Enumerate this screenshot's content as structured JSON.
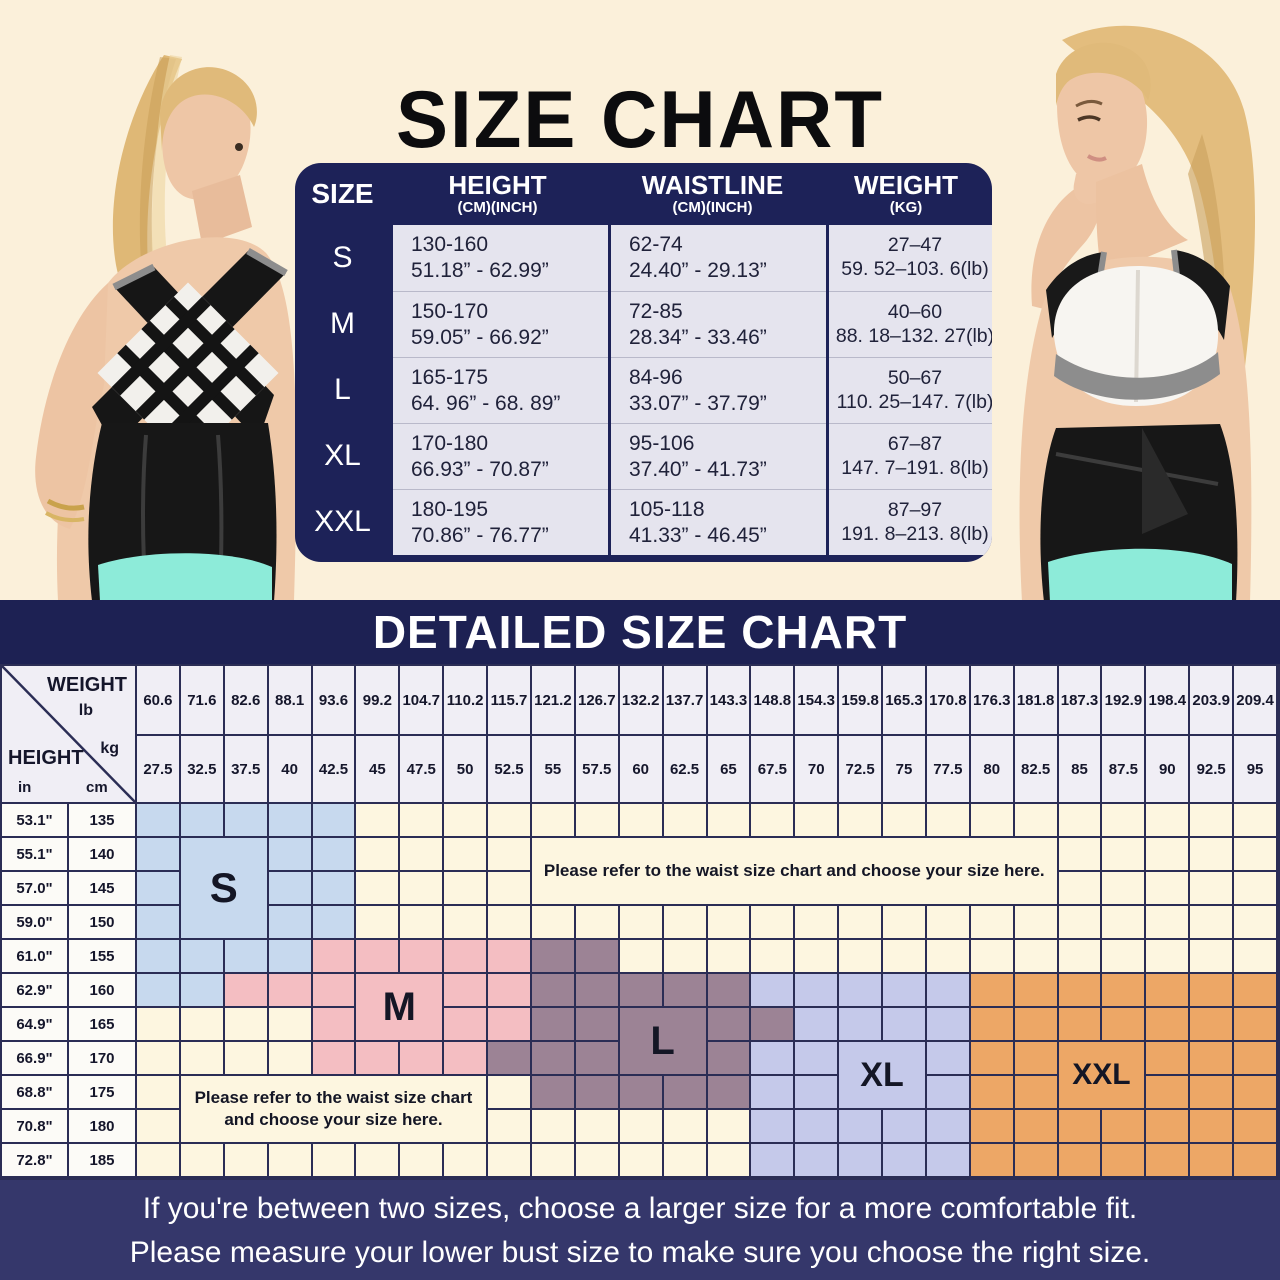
{
  "title": "SIZE CHART",
  "size_table": {
    "col_headers": [
      {
        "label": "SIZE",
        "sub": ""
      },
      {
        "label": "HEIGHT",
        "sub": "(CM)(INCH)"
      },
      {
        "label": "WAISTLINE",
        "sub": "(CM)(INCH)"
      },
      {
        "label": "WEIGHT",
        "sub": "(KG)"
      }
    ],
    "rows": [
      {
        "size": "S",
        "height": [
          "130-160",
          "51.18” - 62.99”"
        ],
        "waist": [
          "62-74",
          "24.40” - 29.13”"
        ],
        "weight": [
          "27–47",
          "59. 52–103. 6(lb)"
        ]
      },
      {
        "size": "M",
        "height": [
          "150-170",
          "59.05” - 66.92”"
        ],
        "waist": [
          "72-85",
          "28.34” - 33.46”"
        ],
        "weight": [
          "40–60",
          "88. 18–132. 27(lb)"
        ]
      },
      {
        "size": "L",
        "height": [
          "165-175",
          "64. 96” - 68. 89”"
        ],
        "waist": [
          "84-96",
          "33.07” - 37.79”"
        ],
        "weight": [
          "50–67",
          "110. 25–147. 7(lb)"
        ]
      },
      {
        "size": "XL",
        "height": [
          "170-180",
          "66.93” - 70.87”"
        ],
        "waist": [
          "95-106",
          "37.40” - 41.73”"
        ],
        "weight": [
          "67–87",
          "147. 7–191. 8(lb)"
        ]
      },
      {
        "size": "XXL",
        "height": [
          "180-195",
          "70.86” - 76.77”"
        ],
        "waist": [
          "105-118",
          "41.33” - 46.45”"
        ],
        "weight": [
          "87–97",
          "191. 8–213. 8(lb)"
        ]
      }
    ]
  },
  "detailed": {
    "title": "DETAILED SIZE CHART",
    "corner": {
      "weight": "WEIGHT",
      "lb": "lb",
      "kg": "kg",
      "height": "HEIGHT",
      "in": "in",
      "cm": "cm"
    },
    "weights_lb": [
      "60.6",
      "71.6",
      "82.6",
      "88.1",
      "93.6",
      "99.2",
      "104.7",
      "110.2",
      "115.7",
      "121.2",
      "126.7",
      "132.2",
      "137.7",
      "143.3",
      "148.8",
      "154.3",
      "159.8",
      "165.3",
      "170.8",
      "176.3",
      "181.8",
      "187.3",
      "192.9",
      "198.4",
      "203.9",
      "209.4"
    ],
    "weights_kg": [
      "27.5",
      "32.5",
      "37.5",
      "40",
      "42.5",
      "45",
      "47.5",
      "50",
      "52.5",
      "55",
      "57.5",
      "60",
      "62.5",
      "65",
      "67.5",
      "70",
      "72.5",
      "75",
      "77.5",
      "80",
      "82.5",
      "85",
      "87.5",
      "90",
      "92.5",
      "95"
    ],
    "rows": [
      {
        "in": "53.1\"",
        "cm": "135"
      },
      {
        "in": "55.1\"",
        "cm": "140"
      },
      {
        "in": "57.0\"",
        "cm": "145"
      },
      {
        "in": "59.0\"",
        "cm": "150"
      },
      {
        "in": "61.0\"",
        "cm": "155"
      },
      {
        "in": "62.9\"",
        "cm": "160"
      },
      {
        "in": "64.9\"",
        "cm": "165"
      },
      {
        "in": "66.9\"",
        "cm": "170"
      },
      {
        "in": "68.8\"",
        "cm": "175"
      },
      {
        "in": "70.8\"",
        "cm": "180"
      },
      {
        "in": "72.8\"",
        "cm": "185"
      }
    ],
    "cell_colors": [
      "BBBBB.....................",
      "BBBBB.....................",
      "BBBBB.....................",
      "BBBBB.....................",
      "BBBBPPPPPLL...............",
      "BBPPPPPPPLLLLLXXXXXOOOOOOO",
      "....PPPPPLLLLLLXXXXOOOOOOO",
      "....PPPPLLLLLLXXXXXOOOOOOO",
      ".........LLLLLXXXXXOOOOOOO",
      "..............XXXXXOOOOOOO",
      "..............XXXXXOOOOOOO"
    ],
    "labels": [
      {
        "text": "S",
        "row": 2,
        "col": 2,
        "rowspan": 3,
        "colspan": 2,
        "key": "B",
        "font": 42
      },
      {
        "text": "M",
        "row": 6,
        "col": 6,
        "rowspan": 2,
        "colspan": 2,
        "key": "P",
        "font": 40
      },
      {
        "text": "L",
        "row": 7,
        "col": 12,
        "rowspan": 2,
        "colspan": 2,
        "key": "L",
        "font": 40
      },
      {
        "text": "XL",
        "row": 8,
        "col": 17,
        "rowspan": 2,
        "colspan": 2,
        "key": "X",
        "font": 34
      },
      {
        "text": "XXL",
        "row": 8,
        "col": 22,
        "rowspan": 2,
        "colspan": 2,
        "key": "O",
        "font": 30
      }
    ],
    "notes": [
      {
        "text": "Please refer to the waist size chart and choose your size here.",
        "row": 2,
        "col": 10,
        "rowspan": 2,
        "colspan": 12
      },
      {
        "text": "Please refer to the waist size chart and choose your size here.",
        "row": 9,
        "col": 2,
        "rowspan": 2,
        "colspan": 7
      }
    ]
  },
  "footer": {
    "line1": "If you're between two sizes, choose a larger size for a more comfortable fit.",
    "line2": "Please measure your lower bust size to make sure you choose the right size."
  },
  "colors": {
    "B": "#c7d9ee",
    "P": "#f4bec2",
    "L": "#9c8395",
    "X": "#c5c9ea",
    "O": "#eda766",
    ".": "#fdf6e0",
    "navy": "#1d2258",
    "banner_navy": "#1d2153",
    "grid_line": "#2b2d55",
    "footer_navy": "#35376b",
    "cream": "#fbf0da",
    "table_cell": "#e5e4ee",
    "mint": "#8debd9",
    "hair_blonde": "#dfb876",
    "skin": "#efc9a9"
  },
  "chart_data": [
    {
      "type": "table",
      "title": "SIZE CHART",
      "columns": [
        "SIZE",
        "HEIGHT (CM)(INCH)",
        "WAISTLINE (CM)(INCH)",
        "WEIGHT (KG)"
      ],
      "rows": [
        [
          "S",
          "130-160 cm / 51.18”-62.99”",
          "62-74 cm / 24.40”-29.13”",
          "27–47 kg / 59.52–103.6 lb"
        ],
        [
          "M",
          "150-170 cm / 59.05”-66.92”",
          "72-85 cm / 28.34”-33.46”",
          "40–60 kg / 88.18–132.27 lb"
        ],
        [
          "L",
          "165-175 cm / 64.96”-68.89”",
          "84-96 cm / 33.07”-37.79”",
          "50–67 kg / 110.25–147.7 lb"
        ],
        [
          "XL",
          "170-180 cm / 66.93”-70.87”",
          "95-106 cm / 37.40”-41.73”",
          "67–87 kg / 147.7–191.8 lb"
        ],
        [
          "XXL",
          "180-195 cm / 70.86”-76.77”",
          "105-118 cm / 41.33”-46.45”",
          "87–97 kg / 191.8–213.8 lb"
        ]
      ]
    },
    {
      "type": "heatmap",
      "title": "DETAILED SIZE CHART",
      "xlabel": "WEIGHT (lb / kg)",
      "ylabel": "HEIGHT (in / cm)",
      "x_lb": [
        60.6,
        71.6,
        82.6,
        88.1,
        93.6,
        99.2,
        104.7,
        110.2,
        115.7,
        121.2,
        126.7,
        132.2,
        137.7,
        143.3,
        148.8,
        154.3,
        159.8,
        165.3,
        170.8,
        176.3,
        181.8,
        187.3,
        192.9,
        198.4,
        203.9,
        209.4
      ],
      "x_kg": [
        27.5,
        32.5,
        37.5,
        40,
        42.5,
        45,
        47.5,
        50,
        52.5,
        55,
        57.5,
        60,
        62.5,
        65,
        67.5,
        70,
        72.5,
        75,
        77.5,
        80,
        82.5,
        85,
        87.5,
        90,
        92.5,
        95
      ],
      "y_in": [
        53.1,
        55.1,
        57.0,
        59.0,
        61.0,
        62.9,
        64.9,
        66.9,
        68.8,
        70.8,
        72.8
      ],
      "y_cm": [
        135,
        140,
        145,
        150,
        155,
        160,
        165,
        170,
        175,
        180,
        185
      ],
      "cells": [
        "BBBBB.....................",
        "BBBBB.....................",
        "BBBBB.....................",
        "BBBBB.....................",
        "BBBBPPPPPLL...............",
        "BBPPPPPPPLLLLLXXXXXOOOOOOO",
        "....PPPPPLLLLLLXXXXOOOOOOO",
        "....PPPPLLLLLLXXXXXOOOOOOO",
        ".........LLLLLXXXXXOOOOOOO",
        "..............XXXXXOOOOOOO",
        "..............XXXXXOOOOOOO"
      ],
      "legend": {
        "B": "S",
        "P": "M",
        "L": "L",
        "X": "XL",
        "O": "XXL",
        ".": "no size / see note"
      },
      "annotations": [
        "Please refer to the waist size chart and choose your size here. (rows 140-145)",
        "Please refer to the waist size chart and choose your size here. (rows 175-180)"
      ]
    }
  ]
}
